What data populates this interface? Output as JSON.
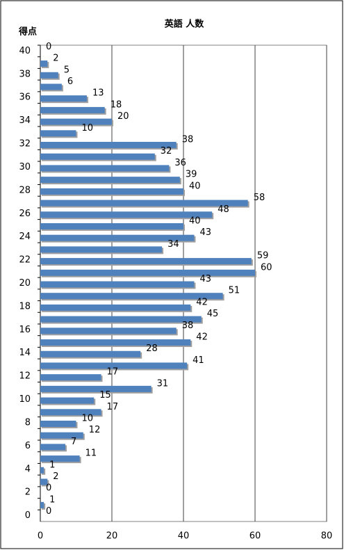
{
  "chart_data": {
    "type": "bar",
    "orientation": "horizontal",
    "title": "英語 人数",
    "y_label": "得点",
    "categories": [
      "40",
      null,
      "38",
      null,
      "36",
      null,
      "34",
      null,
      "32",
      null,
      "30",
      null,
      "28",
      null,
      "26",
      null,
      "24",
      null,
      "22",
      null,
      "20",
      null,
      "18",
      null,
      "16",
      null,
      "14",
      null,
      "12",
      null,
      "10",
      null,
      "8",
      null,
      "6",
      null,
      "4",
      null,
      "2",
      null,
      "0"
    ],
    "values": [
      0,
      2,
      5,
      6,
      13,
      18,
      20,
      10,
      38,
      32,
      36,
      39,
      40,
      58,
      48,
      40,
      43,
      34,
      59,
      60,
      43,
      51,
      42,
      45,
      38,
      42,
      28,
      41,
      17,
      31,
      15,
      17,
      10,
      12,
      7,
      11,
      1,
      2,
      0,
      1,
      0
    ],
    "color": "#4f81bd",
    "xlim": [
      0,
      80
    ],
    "xticks": [
      0,
      20,
      40,
      60,
      80
    ],
    "grid": true
  }
}
